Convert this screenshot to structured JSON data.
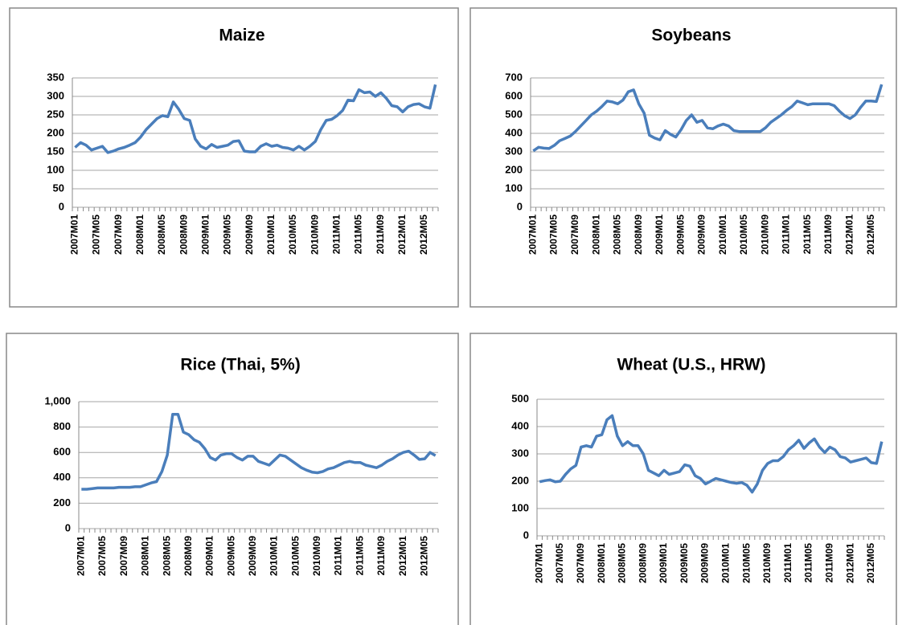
{
  "chart_data": [
    {
      "type": "line",
      "title": "Maize",
      "color": "#4a7ebb",
      "grid": true,
      "ylim": [
        0,
        350
      ],
      "yticks": [
        0,
        50,
        100,
        150,
        200,
        250,
        300,
        350
      ],
      "categories": [
        "2007M01",
        null,
        null,
        null,
        "2007M05",
        null,
        null,
        null,
        "2007M09",
        null,
        null,
        null,
        "2008M01",
        null,
        null,
        null,
        "2008M05",
        null,
        null,
        null,
        "2008M09",
        null,
        null,
        null,
        "2009M01",
        null,
        null,
        null,
        "2009M05",
        null,
        null,
        null,
        "2009M09",
        null,
        null,
        null,
        "2010M01",
        null,
        null,
        null,
        "2010M05",
        null,
        null,
        null,
        "2010M09",
        null,
        null,
        null,
        "2011M01",
        null,
        null,
        null,
        "2011M05",
        null,
        null,
        null,
        "2011M09",
        null,
        null,
        null,
        "2012M01",
        null,
        null,
        null,
        "2012M05",
        null,
        null
      ],
      "values": [
        162,
        175,
        168,
        155,
        160,
        165,
        148,
        152,
        158,
        162,
        168,
        175,
        190,
        210,
        225,
        240,
        248,
        245,
        285,
        265,
        240,
        235,
        185,
        165,
        158,
        170,
        162,
        165,
        168,
        178,
        180,
        152,
        150,
        150,
        165,
        172,
        165,
        168,
        162,
        160,
        155,
        165,
        155,
        165,
        178,
        210,
        235,
        238,
        248,
        262,
        290,
        288,
        318,
        310,
        312,
        300,
        310,
        295,
        275,
        272,
        258,
        272,
        278,
        280,
        272,
        268,
        332
      ]
    },
    {
      "type": "line",
      "title": "Soybeans",
      "color": "#4a7ebb",
      "grid": true,
      "ylim": [
        0,
        700
      ],
      "yticks": [
        0,
        100,
        200,
        300,
        400,
        500,
        600,
        700
      ],
      "categories": [
        "2007M01",
        null,
        null,
        null,
        "2007M05",
        null,
        null,
        null,
        "2007M09",
        null,
        null,
        null,
        "2008M01",
        null,
        null,
        null,
        "2008M05",
        null,
        null,
        null,
        "2008M09",
        null,
        null,
        null,
        "2009M01",
        null,
        null,
        null,
        "2009M05",
        null,
        null,
        null,
        "2009M09",
        null,
        null,
        null,
        "2010M01",
        null,
        null,
        null,
        "2010M05",
        null,
        null,
        null,
        "2010M09",
        null,
        null,
        null,
        "2011M01",
        null,
        null,
        null,
        "2011M05",
        null,
        null,
        null,
        "2011M09",
        null,
        null,
        null,
        "2012M01",
        null,
        null,
        null,
        "2012M05",
        null,
        null
      ],
      "values": [
        305,
        325,
        320,
        318,
        335,
        360,
        372,
        385,
        410,
        440,
        470,
        500,
        520,
        545,
        575,
        570,
        560,
        580,
        625,
        635,
        560,
        510,
        390,
        375,
        365,
        415,
        395,
        380,
        420,
        470,
        500,
        460,
        470,
        430,
        425,
        440,
        450,
        440,
        415,
        410,
        410,
        410,
        410,
        410,
        430,
        460,
        480,
        500,
        525,
        545,
        575,
        565,
        555,
        560,
        560,
        560,
        560,
        550,
        520,
        495,
        480,
        500,
        540,
        575,
        575,
        572,
        665
      ]
    },
    {
      "type": "line",
      "title": "Rice (Thai, 5%)",
      "color": "#4a7ebb",
      "grid": true,
      "ylim": [
        0,
        1000
      ],
      "yticks": [
        0,
        200,
        400,
        600,
        800,
        {
          "value": 1000,
          "label": "1,000"
        }
      ],
      "categories": [
        "2007M01",
        null,
        null,
        null,
        "2007M05",
        null,
        null,
        null,
        "2007M09",
        null,
        null,
        null,
        "2008M01",
        null,
        null,
        null,
        "2008M05",
        null,
        null,
        null,
        "2008M09",
        null,
        null,
        null,
        "2009M01",
        null,
        null,
        null,
        "2009M05",
        null,
        null,
        null,
        "2009M09",
        null,
        null,
        null,
        "2010M01",
        null,
        null,
        null,
        "2010M05",
        null,
        null,
        null,
        "2010M09",
        null,
        null,
        null,
        "2011M01",
        null,
        null,
        null,
        "2011M05",
        null,
        null,
        null,
        "2011M09",
        null,
        null,
        null,
        "2012M01",
        null,
        null,
        null,
        "2012M05",
        null,
        null
      ],
      "values": [
        310,
        310,
        315,
        320,
        320,
        320,
        320,
        325,
        325,
        325,
        330,
        330,
        345,
        360,
        370,
        450,
        580,
        900,
        900,
        760,
        740,
        700,
        680,
        630,
        560,
        540,
        580,
        590,
        590,
        560,
        540,
        570,
        570,
        530,
        515,
        500,
        540,
        580,
        570,
        540,
        510,
        480,
        460,
        445,
        440,
        450,
        470,
        480,
        500,
        520,
        530,
        520,
        520,
        500,
        490,
        480,
        500,
        530,
        550,
        580,
        600,
        610,
        580,
        545,
        550,
        600,
        575
      ]
    },
    {
      "type": "line",
      "title": "Wheat (U.S., HRW)",
      "color": "#4a7ebb",
      "grid": true,
      "ylim": [
        0,
        500
      ],
      "yticks": [
        0,
        100,
        200,
        300,
        400,
        500
      ],
      "categories": [
        "2007M01",
        null,
        null,
        null,
        "2007M05",
        null,
        null,
        null,
        "2007M09",
        null,
        null,
        null,
        "2008M01",
        null,
        null,
        null,
        "2008M05",
        null,
        null,
        null,
        "2008M09",
        null,
        null,
        null,
        "2009M01",
        null,
        null,
        null,
        "2009M05",
        null,
        null,
        null,
        "2009M09",
        null,
        null,
        null,
        "2010M01",
        null,
        null,
        null,
        "2010M05",
        null,
        null,
        null,
        "2010M09",
        null,
        null,
        null,
        "2011M01",
        null,
        null,
        null,
        "2011M05",
        null,
        null,
        null,
        "2011M09",
        null,
        null,
        null,
        "2012M01",
        null,
        null,
        null,
        "2012M05",
        null,
        null
      ],
      "values": [
        198,
        202,
        205,
        198,
        200,
        225,
        245,
        258,
        325,
        330,
        325,
        365,
        370,
        425,
        440,
        365,
        330,
        345,
        330,
        330,
        300,
        240,
        230,
        220,
        240,
        225,
        230,
        235,
        260,
        255,
        220,
        210,
        190,
        200,
        210,
        205,
        200,
        195,
        192,
        195,
        185,
        160,
        190,
        240,
        265,
        275,
        275,
        290,
        315,
        330,
        350,
        320,
        340,
        355,
        325,
        305,
        325,
        315,
        290,
        285,
        270,
        275,
        280,
        285,
        268,
        265,
        345
      ]
    }
  ]
}
